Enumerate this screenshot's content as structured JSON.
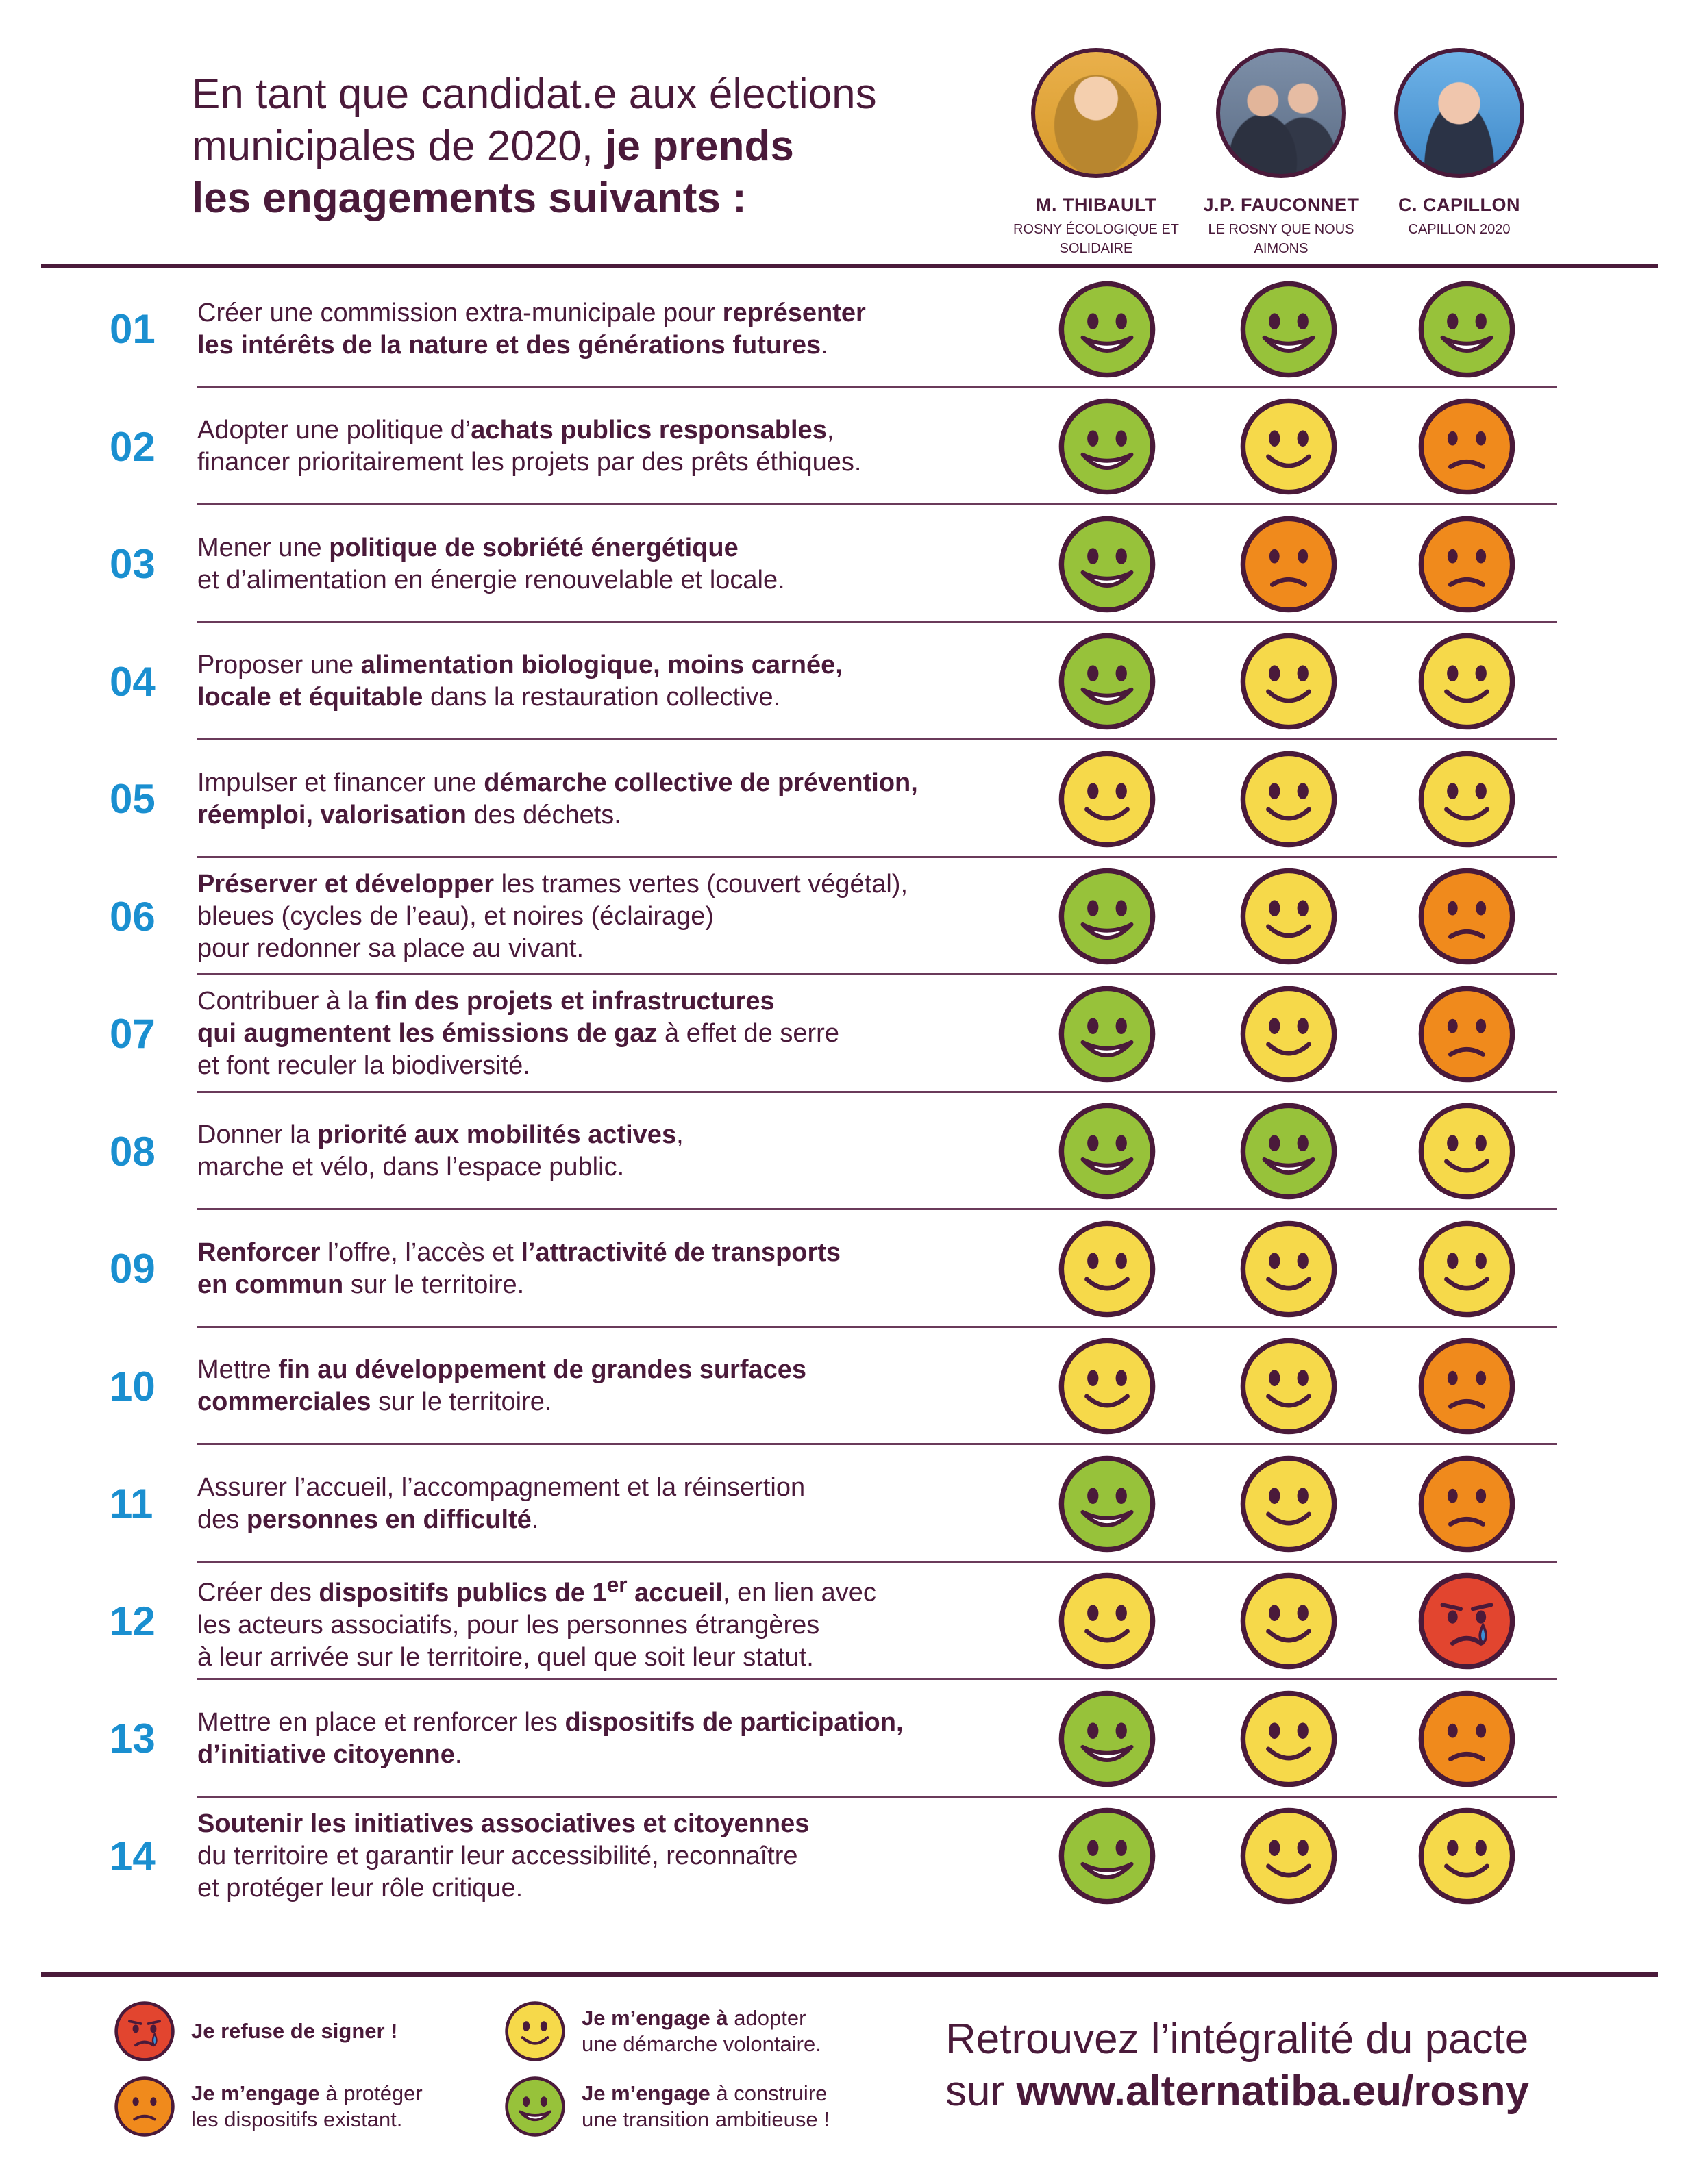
{
  "header": {
    "line1": "En tant que candidat.e aux élections",
    "line2_plain": "municipales de 2020, ",
    "line2_bold": "je prends",
    "line3_bold": "les engagements suivants :"
  },
  "candidates": [
    {
      "name": "M. THIBAULT",
      "list": "ROSNY ÉCOLOGIQUE ET SOLIDAIRE"
    },
    {
      "name": "J.P. FAUCONNET",
      "list": "LE ROSNY QUE NOUS AIMONS"
    },
    {
      "name": "C. CAPILLON",
      "list": "CAPILLON 2020"
    }
  ],
  "colors": {
    "green": "#97c23a",
    "yellow": "#f6d94a",
    "orange": "#f08a1c",
    "red": "#e2452f",
    "outline": "#4a1a3a",
    "number_blue": "#1a8fd0",
    "text_purple": "#4a1a3a"
  },
  "commitments": [
    {
      "num": "01",
      "html": "Créer une commission extra-municipale pour <b>représenter</b>\n<b>les intérêts de la nature et des générations futures</b>.",
      "ratings": [
        "green",
        "green",
        "green"
      ]
    },
    {
      "num": "02",
      "html": "Adopter une politique d’<b>achats publics responsables</b>,\nfinancer prioritairement les projets par des prêts éthiques.",
      "ratings": [
        "green",
        "yellow",
        "orange"
      ]
    },
    {
      "num": "03",
      "html": "Mener une <b>politique de sobriété énergétique</b>\net d’alimentation en énergie renouvelable et locale.",
      "ratings": [
        "green",
        "orange",
        "orange"
      ]
    },
    {
      "num": "04",
      "html": "Proposer une <b>alimentation biologique, moins carnée,</b>\n<b>locale et équitable</b> dans la restauration collective.",
      "ratings": [
        "green",
        "yellow",
        "yellow"
      ]
    },
    {
      "num": "05",
      "html": "Impulser et financer une <b>démarche collective de prévention,</b>\n<b>réemploi, valorisation</b> des déchets.",
      "ratings": [
        "yellow",
        "yellow",
        "yellow"
      ]
    },
    {
      "num": "06",
      "html": "<b>Préserver et développer</b> les trames vertes (couvert végétal),\nbleues (cycles de l’eau), et noires (éclairage)\npour redonner sa place au vivant.",
      "ratings": [
        "green",
        "yellow",
        "orange"
      ]
    },
    {
      "num": "07",
      "html": "Contribuer à la <b>fin des projets et infrastructures</b>\n<b>qui augmentent les émissions de gaz</b> à effet de serre\net font reculer la biodiversité.",
      "ratings": [
        "green",
        "yellow",
        "orange"
      ]
    },
    {
      "num": "08",
      "html": "Donner la <b>priorité aux mobilités actives</b>,\nmarche et vélo, dans l’espace public.",
      "ratings": [
        "green",
        "green",
        "yellow"
      ]
    },
    {
      "num": "09",
      "html": "<b>Renforcer</b> l’offre, l’accès et <b>l’attractivité de transports</b>\n<b>en commun</b> sur le territoire.",
      "ratings": [
        "yellow",
        "yellow",
        "yellow"
      ]
    },
    {
      "num": "10",
      "html": "Mettre <b>fin au développement de grandes surfaces</b>\n<b>commerciales</b> sur le territoire.",
      "ratings": [
        "yellow",
        "yellow",
        "orange"
      ]
    },
    {
      "num": "11",
      "html": "Assurer l’accueil, l’accompagnement et la réinsertion\ndes <b>personnes en difficulté</b>.",
      "ratings": [
        "green",
        "yellow",
        "orange"
      ]
    },
    {
      "num": "12",
      "html": "Créer des <b>dispositifs publics de 1<sup>er</sup> accueil</b>, en lien avec\nles acteurs associatifs, pour les personnes étrangères\nà leur arrivée sur le territoire, quel que soit leur statut.",
      "ratings": [
        "yellow",
        "yellow",
        "red"
      ]
    },
    {
      "num": "13",
      "html": "Mettre en place et renforcer les <b>dispositifs de participation,</b>\n<b>d’initiative citoyenne</b>.",
      "ratings": [
        "green",
        "yellow",
        "orange"
      ]
    },
    {
      "num": "14",
      "html": "<b>Soutenir les initiatives associatives et citoyennes</b>\ndu territoire et garantir leur accessibilité, reconnaître\net protéger leur rôle critique.",
      "ratings": [
        "green",
        "yellow",
        "yellow"
      ]
    }
  ],
  "legend": [
    {
      "face": "red",
      "html": "<b>Je refuse de signer !</b>"
    },
    {
      "face": "orange",
      "html": "<b>Je m’engage</b> à protéger\nles dispositifs existant."
    },
    {
      "face": "yellow",
      "html": "<b>Je m’engage à</b> adopter\nune démarche volontaire."
    },
    {
      "face": "green",
      "html": "<b>Je m’engage</b> à construire\nune transition ambitieuse !"
    }
  ],
  "footer": {
    "line1": "Retrouvez l’intégralité du pacte",
    "line2_plain": "sur ",
    "line2_bold": "www.alternatiba.eu/rosny"
  }
}
